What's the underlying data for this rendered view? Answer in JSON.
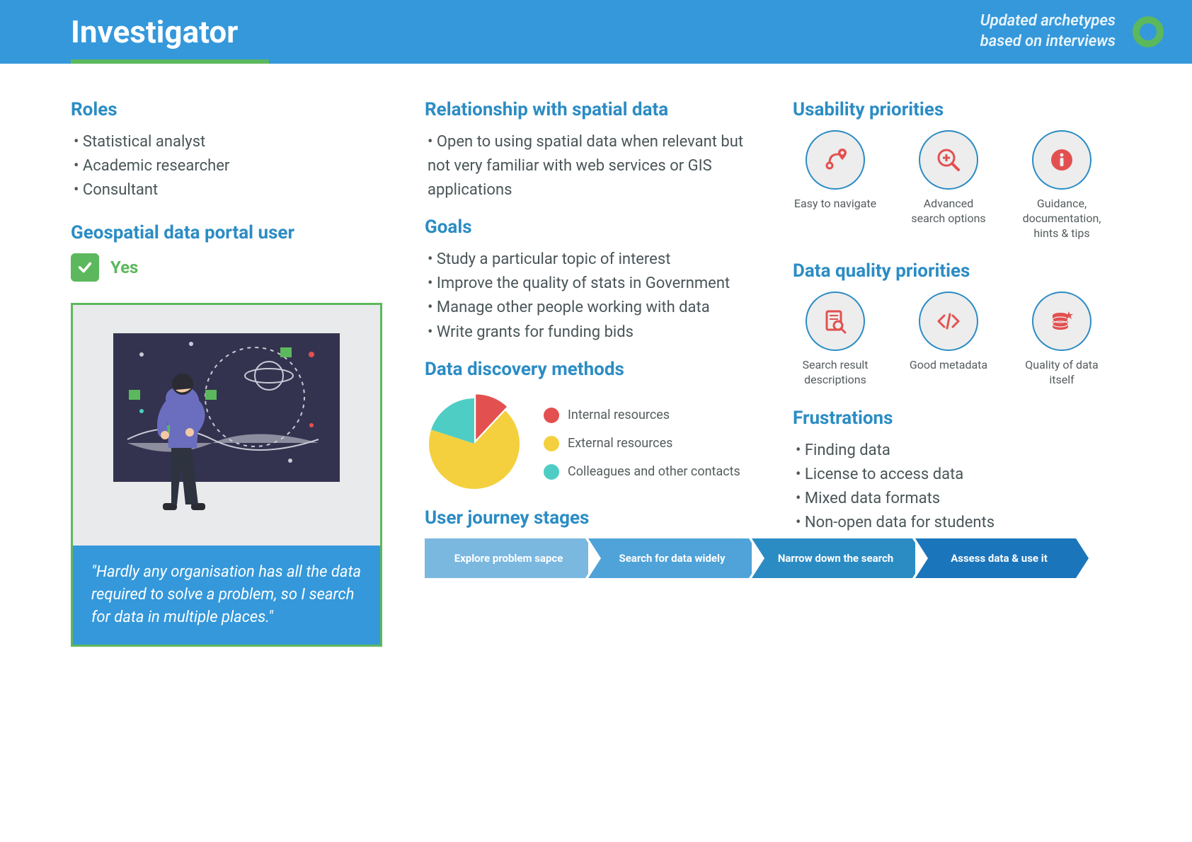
{
  "header": {
    "title": "Investigator",
    "subtitle_line1": "Updated archetypes",
    "subtitle_line2": "based on interviews",
    "bg_color": "#3498db",
    "underline_color": "#5cb85c",
    "ring_color": "#5cb85c"
  },
  "left": {
    "roles_heading": "Roles",
    "roles": [
      "Statistical analyst",
      "Academic researcher",
      "Consultant"
    ],
    "geo_heading": "Geospatial data portal user",
    "geo_answer": "Yes",
    "check_bg": "#5cb85c",
    "quote": "\"Hardly any organisation has all the data required to solve a problem, so I search for data in multiple places.\"",
    "quote_bg": "#3498db",
    "illus_border": "#5cb85c",
    "illus_bg": "#e9eaec",
    "illus": {
      "board_color": "#33334f",
      "person_shirt": "#6b6ebf",
      "person_pants": "#2e3340",
      "skin": "#f3c9a5",
      "hair": "#2b2b33",
      "sticky": "#5cb85c",
      "line": "#c9cad6",
      "accent_red": "#e35050",
      "accent_green": "#4ecdc4"
    }
  },
  "mid": {
    "rel_heading": "Relationship with spatial data",
    "rel_items": [
      "Open to using spatial data when relevant but not very familiar with web services or GIS applications"
    ],
    "goals_heading": "Goals",
    "goals": [
      "Study a particular topic of interest",
      "Improve the quality of stats in Government",
      "Manage other people working with data",
      "Write grants for funding bids"
    ],
    "discovery_heading": "Data discovery methods",
    "pie": {
      "type": "pie",
      "slices": [
        {
          "label": "Internal resources",
          "value": 12,
          "color": "#e35050"
        },
        {
          "label": "External resources",
          "value": 68,
          "color": "#f4d03f"
        },
        {
          "label": "Colleagues and other contacts",
          "value": 20,
          "color": "#4ecdc4"
        }
      ],
      "radius": 64
    }
  },
  "right": {
    "usability_heading": "Usability priorities",
    "usability": [
      {
        "icon": "route-pin-icon",
        "label": "Easy to navigate"
      },
      {
        "icon": "search-plus-icon",
        "label": "Advanced search options"
      },
      {
        "icon": "info-icon",
        "label": "Guidance, documentation, hints & tips"
      }
    ],
    "dq_heading": "Data quality priorities",
    "dq": [
      {
        "icon": "doc-search-icon",
        "label": "Search result descriptions"
      },
      {
        "icon": "code-icon",
        "label": "Good metadata"
      },
      {
        "icon": "db-star-icon",
        "label": "Quality of data itself"
      }
    ],
    "frustrations_heading": "Frustrations",
    "frustrations": [
      "Finding data",
      "License to access data",
      "Mixed data formats",
      "Non-open data for students"
    ],
    "icon_color": "#e35050",
    "icon_bg": "#ededed",
    "icon_border": "#2b8cc4"
  },
  "journey": {
    "heading": "User journey stages",
    "steps": [
      {
        "label": "Explore problem sapce",
        "color": "#7ab8e0"
      },
      {
        "label": "Search for data widely",
        "color": "#4fa3d9"
      },
      {
        "label": "Narrow down the search",
        "color": "#2b8cc4"
      },
      {
        "label": "Assess data & use it",
        "color": "#1b75bb"
      }
    ]
  },
  "colors": {
    "heading": "#2b8cc4",
    "body": "#4a5558"
  }
}
